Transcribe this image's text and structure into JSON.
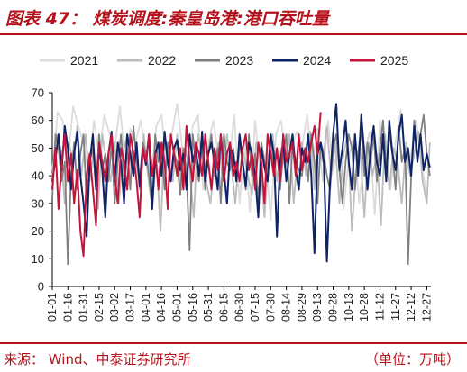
{
  "header": {
    "title": "图表 47：  煤炭调度:秦皇岛港:港口吞吐量"
  },
  "footer": {
    "source": "来源：   Wind、中泰证券研究所",
    "unit": "（单位：万吨）"
  },
  "colors": {
    "brand": "#b5121b",
    "axis": "#000000"
  },
  "chart_data": {
    "type": "line",
    "xlabel": "",
    "ylabel": "",
    "ylim": [
      0,
      70
    ],
    "yticks": [
      0,
      10,
      20,
      30,
      40,
      50,
      60,
      70
    ],
    "grid": false,
    "legend_position": "top",
    "x_tick_labels": [
      "01-01",
      "01-16",
      "01-31",
      "02-15",
      "03-02",
      "03-17",
      "04-01",
      "04-16",
      "05-01",
      "05-16",
      "05-31",
      "06-15",
      "06-30",
      "07-15",
      "07-30",
      "08-14",
      "08-29",
      "09-13",
      "09-28",
      "10-13",
      "10-28",
      "11-12",
      "11-27",
      "12-12",
      "12-27"
    ],
    "x_tick_days": [
      1,
      16,
      31,
      46,
      61,
      76,
      91,
      106,
      121,
      136,
      151,
      166,
      181,
      196,
      211,
      226,
      241,
      256,
      271,
      286,
      301,
      316,
      331,
      346,
      361
    ],
    "series": [
      {
        "name": "2021",
        "color": "#dcdcdc",
        "width": 1.8,
        "x": [
          1,
          6,
          11,
          16,
          21,
          26,
          31,
          36,
          41,
          46,
          51,
          56,
          61,
          66,
          71,
          76,
          81,
          86,
          91,
          96,
          101,
          106,
          111,
          116,
          121,
          126,
          131,
          136,
          141,
          146,
          151,
          156,
          161,
          166,
          171,
          176,
          181,
          186,
          191,
          196,
          201,
          206,
          211,
          216,
          221,
          226,
          231,
          236,
          241,
          246,
          251,
          256,
          261,
          266,
          271,
          276,
          281,
          286,
          291,
          296,
          301,
          306,
          311,
          316,
          321,
          326,
          331,
          336,
          341,
          346,
          351,
          356,
          361
        ],
        "values": [
          38,
          63,
          60,
          45,
          65,
          58,
          52,
          40,
          60,
          48,
          62,
          55,
          50,
          65,
          45,
          57,
          52,
          60,
          48,
          40,
          58,
          62,
          44,
          55,
          66,
          50,
          42,
          58,
          62,
          35,
          52,
          60,
          46,
          55,
          45,
          62,
          30,
          52,
          27,
          60,
          40,
          48,
          24,
          55,
          60,
          45,
          50,
          56,
          50,
          62,
          44,
          57,
          38,
          60,
          42,
          50,
          28,
          46,
          55,
          30,
          48,
          56,
          26,
          60,
          45,
          35,
          52,
          64,
          40,
          48,
          60,
          44,
          33
        ]
      },
      {
        "name": "2022",
        "color": "#bcbcbc",
        "width": 1.8,
        "x": [
          1,
          5,
          9,
          13,
          17,
          21,
          25,
          29,
          33,
          37,
          41,
          45,
          49,
          53,
          57,
          61,
          65,
          69,
          73,
          77,
          81,
          85,
          89,
          93,
          97,
          101,
          105,
          109,
          113,
          117,
          121,
          125,
          129,
          133,
          137,
          141,
          145,
          149,
          153,
          157,
          161,
          165,
          169,
          173,
          177,
          181,
          185,
          189,
          193,
          197,
          201,
          205,
          209,
          213,
          217,
          221,
          225,
          229,
          233,
          237,
          241,
          245,
          249,
          253,
          257,
          261,
          265,
          269,
          273,
          277,
          281,
          285,
          289,
          293,
          297,
          301,
          305,
          309,
          313,
          317,
          321,
          325,
          329,
          333,
          337,
          341,
          345,
          349,
          353,
          357,
          361,
          364
        ],
        "values": [
          42,
          55,
          50,
          30,
          52,
          45,
          58,
          40,
          55,
          38,
          50,
          28,
          55,
          45,
          38,
          52,
          30,
          48,
          55,
          42,
          50,
          35,
          55,
          40,
          28,
          48,
          20,
          52,
          45,
          38,
          55,
          35,
          50,
          42,
          25,
          55,
          48,
          38,
          30,
          45,
          52,
          38,
          55,
          44,
          30,
          50,
          48,
          40,
          33,
          52,
          45,
          25,
          48,
          55,
          38,
          50,
          42,
          55,
          30,
          48,
          52,
          40,
          56,
          35,
          50,
          45,
          58,
          40,
          52,
          30,
          48,
          55,
          20,
          42,
          50,
          25,
          52,
          40,
          48,
          22,
          55,
          35,
          50,
          45,
          30,
          52,
          40,
          48,
          56,
          38,
          30,
          52
        ]
      },
      {
        "name": "2023",
        "color": "#808080",
        "width": 1.8,
        "x": [
          1,
          4,
          7,
          10,
          13,
          16,
          19,
          22,
          25,
          28,
          31,
          34,
          37,
          40,
          43,
          46,
          49,
          52,
          55,
          58,
          61,
          64,
          67,
          70,
          73,
          76,
          79,
          82,
          85,
          88,
          91,
          94,
          97,
          100,
          103,
          106,
          109,
          112,
          115,
          118,
          121,
          124,
          127,
          130,
          133,
          136,
          139,
          142,
          145,
          148,
          151,
          154,
          157,
          160,
          163,
          166,
          169,
          172,
          175,
          178,
          181,
          184,
          187,
          190,
          193,
          196,
          199,
          202,
          205,
          208,
          211,
          214,
          217,
          220,
          223,
          226,
          229,
          232,
          235,
          238,
          241,
          244,
          247,
          250,
          253,
          256,
          259,
          262,
          265,
          268,
          271,
          274,
          277,
          280,
          283,
          286,
          289,
          292,
          295,
          298,
          301,
          304,
          307,
          310,
          313,
          316,
          319,
          322,
          325,
          328,
          331,
          334,
          337,
          340,
          343,
          346,
          349,
          352,
          355,
          358,
          361,
          364
        ],
        "values": [
          32,
          55,
          50,
          38,
          45,
          8,
          40,
          52,
          35,
          48,
          55,
          30,
          45,
          50,
          35,
          55,
          42,
          48,
          38,
          52,
          30,
          45,
          55,
          40,
          50,
          35,
          58,
          45,
          38,
          52,
          48,
          40,
          28,
          55,
          45,
          50,
          35,
          52,
          38,
          48,
          45,
          33,
          50,
          42,
          13,
          55,
          45,
          38,
          52,
          35,
          48,
          55,
          40,
          50,
          30,
          55,
          45,
          42,
          50,
          38,
          52,
          45,
          35,
          55,
          40,
          48,
          30,
          52,
          45,
          38,
          55,
          42,
          50,
          35,
          48,
          55,
          30,
          52,
          45,
          42,
          40,
          50,
          38,
          55,
          45,
          30,
          52,
          48,
          40,
          35,
          50,
          55,
          42,
          30,
          45,
          55,
          50,
          35,
          48,
          58,
          40,
          52,
          45,
          55,
          38,
          50,
          60,
          42,
          55,
          48,
          35,
          58,
          45,
          50,
          8,
          40,
          60,
          45,
          55,
          62,
          48,
          40
        ]
      },
      {
        "name": "2024",
        "color": "#0e2266",
        "width": 2,
        "x": [
          1,
          4,
          7,
          10,
          13,
          16,
          19,
          22,
          25,
          28,
          31,
          34,
          37,
          40,
          43,
          46,
          49,
          52,
          55,
          58,
          61,
          64,
          67,
          70,
          73,
          76,
          79,
          82,
          85,
          88,
          91,
          94,
          97,
          100,
          103,
          106,
          109,
          112,
          115,
          118,
          121,
          124,
          127,
          130,
          133,
          136,
          139,
          142,
          145,
          148,
          151,
          154,
          157,
          160,
          163,
          166,
          169,
          172,
          175,
          178,
          181,
          184,
          187,
          190,
          193,
          196,
          199,
          202,
          205,
          208,
          211,
          214,
          217,
          220,
          223,
          226,
          229,
          232,
          235,
          238,
          241,
          244,
          247,
          250,
          253,
          256,
          259,
          262,
          265,
          268,
          271,
          274,
          277,
          280,
          283,
          286,
          289,
          292,
          295,
          298,
          301,
          304,
          307,
          310,
          313,
          316,
          319,
          322,
          325,
          328,
          331,
          334,
          337,
          340,
          343,
          346,
          349,
          352,
          355,
          358,
          361,
          364
        ],
        "values": [
          38,
          46,
          55,
          42,
          58,
          50,
          35,
          48,
          56,
          40,
          30,
          18,
          45,
          55,
          35,
          50,
          42,
          25,
          48,
          56,
          38,
          52,
          45,
          30,
          55,
          48,
          40,
          52,
          36,
          50,
          44,
          55,
          28,
          48,
          52,
          40,
          56,
          45,
          38,
          50,
          53,
          42,
          48,
          35,
          55,
          45,
          50,
          40,
          56,
          38,
          48,
          52,
          45,
          35,
          55,
          42,
          30,
          50,
          48,
          38,
          55,
          45,
          36,
          52,
          48,
          40,
          25,
          50,
          43,
          38,
          55,
          48,
          18,
          45,
          52,
          38,
          48,
          55,
          42,
          35,
          50,
          45,
          55,
          40,
          12,
          48,
          52,
          45,
          9,
          38,
          55,
          66,
          42,
          50,
          60,
          45,
          35,
          55,
          40,
          62,
          48,
          35,
          50,
          58,
          45,
          40,
          55,
          38,
          60,
          48,
          42,
          55,
          62,
          45,
          50,
          40,
          58,
          45,
          55,
          42,
          48,
          43
        ]
      },
      {
        "name": "2025",
        "color": "#c4143c",
        "width": 2,
        "x": [
          1,
          4,
          7,
          10,
          13,
          16,
          19,
          22,
          25,
          28,
          31,
          34,
          37,
          40,
          43,
          46,
          49,
          52,
          55,
          58,
          61,
          64,
          67,
          70,
          73,
          76,
          79,
          82,
          85,
          88,
          91,
          94,
          97,
          100,
          103,
          106,
          109,
          112,
          115,
          118,
          121,
          124,
          127,
          130,
          133,
          136,
          139,
          142,
          145,
          148,
          151,
          154,
          157,
          160,
          163,
          166,
          169,
          172,
          175,
          178,
          181,
          184,
          187,
          190,
          193,
          196,
          199,
          202,
          205,
          208,
          211,
          214,
          217,
          220,
          223,
          226,
          229,
          232,
          235,
          238,
          241,
          244,
          247,
          250,
          253,
          256,
          259
        ],
        "values": [
          35,
          50,
          28,
          45,
          55,
          38,
          48,
          30,
          42,
          20,
          11,
          40,
          48,
          35,
          22,
          52,
          45,
          38,
          48,
          55,
          40,
          30,
          50,
          45,
          35,
          55,
          48,
          38,
          25,
          50,
          45,
          55,
          40,
          48,
          35,
          52,
          45,
          28,
          55,
          48,
          40,
          50,
          35,
          58,
          45,
          38,
          52,
          48,
          40,
          55,
          45,
          35,
          50,
          42,
          55,
          38,
          48,
          52,
          40,
          45,
          38,
          50,
          55,
          42,
          48,
          35,
          52,
          45,
          30,
          55,
          48,
          40,
          50,
          38,
          55,
          45,
          48,
          52,
          40,
          55,
          42,
          50,
          45,
          52,
          58,
          48,
          63
        ]
      }
    ]
  }
}
